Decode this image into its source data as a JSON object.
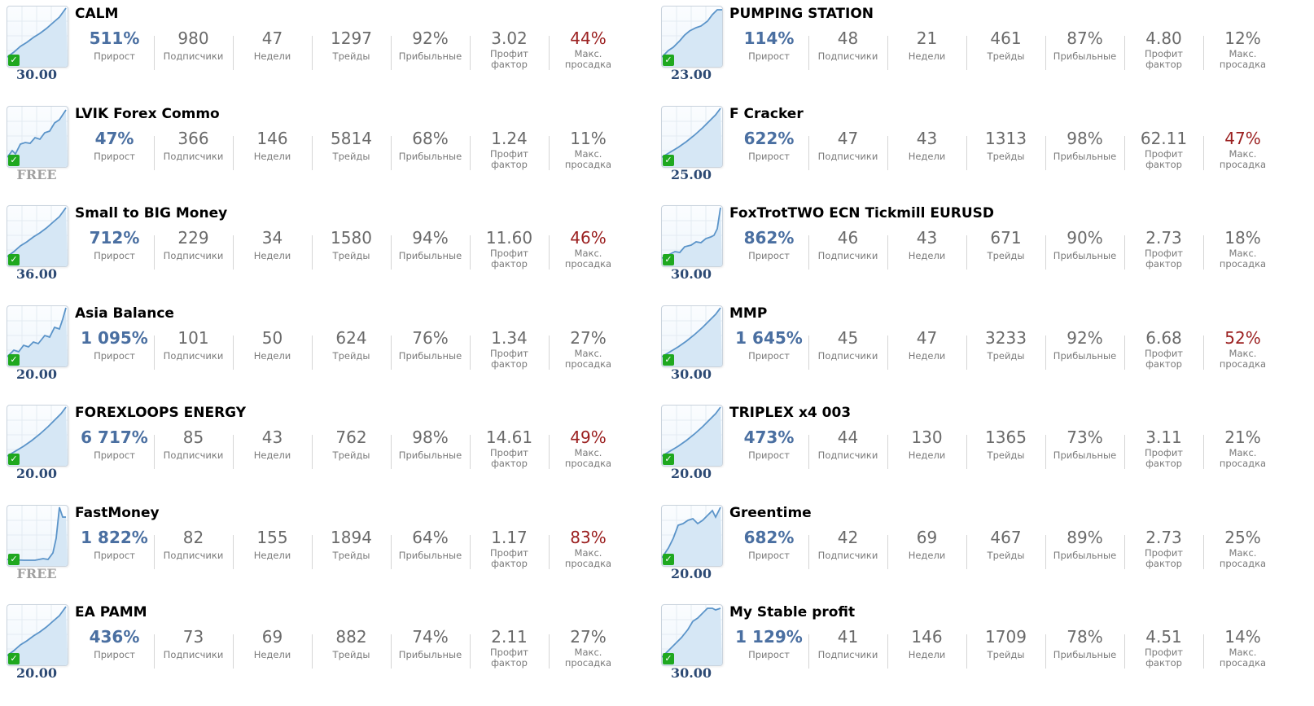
{
  "labels": {
    "growth": "Прирост",
    "subscribers": "Подписчики",
    "weeks": "Недели",
    "trades": "Трейды",
    "profitable": "Прибыльные",
    "profit_factor": "Профит фактор",
    "max_drawdown": "Макс. просадка"
  },
  "colors": {
    "growth": "#4a6fa1",
    "drawdown_high": "#9b2020",
    "price": "#2d4a74",
    "free": "#a0a0a0",
    "check": "#1fa81f"
  },
  "signals": [
    {
      "name": "CALM",
      "price": "30.00",
      "growth": "511%",
      "subscribers": "980",
      "weeks": "47",
      "trades": "1297",
      "profitable": "92%",
      "profit_factor": "3.02",
      "drawdown": "44%",
      "dd_high": true,
      "chart": "steady"
    },
    {
      "name": "PUMPING STATION",
      "price": "23.00",
      "growth": "114%",
      "subscribers": "48",
      "weeks": "21",
      "trades": "461",
      "profitable": "87%",
      "profit_factor": "4.80",
      "drawdown": "12%",
      "dd_high": false,
      "chart": "steady2"
    },
    {
      "name": "LVIK Forex Commo",
      "price": "FREE",
      "growth": "47%",
      "subscribers": "366",
      "weeks": "146",
      "trades": "5814",
      "profitable": "68%",
      "profit_factor": "1.24",
      "drawdown": "11%",
      "dd_high": false,
      "chart": "wavy"
    },
    {
      "name": "F Cracker",
      "price": "25.00",
      "growth": "622%",
      "subscribers": "47",
      "weeks": "43",
      "trades": "1313",
      "profitable": "98%",
      "profit_factor": "62.11",
      "drawdown": "47%",
      "dd_high": true,
      "chart": "smooth"
    },
    {
      "name": "Small to BIG Money",
      "price": "36.00",
      "growth": "712%",
      "subscribers": "229",
      "weeks": "34",
      "trades": "1580",
      "profitable": "94%",
      "profit_factor": "11.60",
      "drawdown": "46%",
      "dd_high": true,
      "chart": "steady"
    },
    {
      "name": "FoxTrotTWO ECN Tickmill EURUSD",
      "price": "30.00",
      "growth": "862%",
      "subscribers": "46",
      "weeks": "43",
      "trades": "671",
      "profitable": "90%",
      "profit_factor": "2.73",
      "drawdown": "18%",
      "dd_high": false,
      "chart": "late"
    },
    {
      "name": "Asia Balance",
      "price": "20.00",
      "growth": "1 095%",
      "subscribers": "101",
      "weeks": "50",
      "trades": "624",
      "profitable": "76%",
      "profit_factor": "1.34",
      "drawdown": "27%",
      "dd_high": false,
      "chart": "wavy2"
    },
    {
      "name": "MMP",
      "price": "30.00",
      "growth": "1 645%",
      "subscribers": "45",
      "weeks": "47",
      "trades": "3233",
      "profitable": "92%",
      "profit_factor": "6.68",
      "drawdown": "52%",
      "dd_high": true,
      "chart": "smooth"
    },
    {
      "name": "FOREXLOOPS ENERGY",
      "price": "20.00",
      "growth": "6 717%",
      "subscribers": "85",
      "weeks": "43",
      "trades": "762",
      "profitable": "98%",
      "profit_factor": "14.61",
      "drawdown": "49%",
      "dd_high": true,
      "chart": "smooth"
    },
    {
      "name": "TRIPLEX x4 003",
      "price": "20.00",
      "growth": "473%",
      "subscribers": "44",
      "weeks": "130",
      "trades": "1365",
      "profitable": "73%",
      "profit_factor": "3.11",
      "drawdown": "21%",
      "dd_high": false,
      "chart": "smooth"
    },
    {
      "name": "FastMoney",
      "price": "FREE",
      "growth": "1 822%",
      "subscribers": "82",
      "weeks": "155",
      "trades": "1894",
      "profitable": "64%",
      "profit_factor": "1.17",
      "drawdown": "83%",
      "dd_high": true,
      "chart": "spike"
    },
    {
      "name": "Greentime",
      "price": "20.00",
      "growth": "682%",
      "subscribers": "42",
      "weeks": "69",
      "trades": "467",
      "profitable": "89%",
      "profit_factor": "2.73",
      "drawdown": "25%",
      "dd_high": false,
      "chart": "jump"
    },
    {
      "name": "EA PAMM",
      "price": "20.00",
      "growth": "436%",
      "subscribers": "73",
      "weeks": "69",
      "trades": "882",
      "profitable": "74%",
      "profit_factor": "2.11",
      "drawdown": "27%",
      "dd_high": false,
      "chart": "steady"
    },
    {
      "name": "My Stable profit",
      "price": "30.00",
      "growth": "1 129%",
      "subscribers": "41",
      "weeks": "146",
      "trades": "1709",
      "profitable": "78%",
      "profit_factor": "4.51",
      "drawdown": "14%",
      "dd_high": false,
      "chart": "plateau"
    }
  ]
}
